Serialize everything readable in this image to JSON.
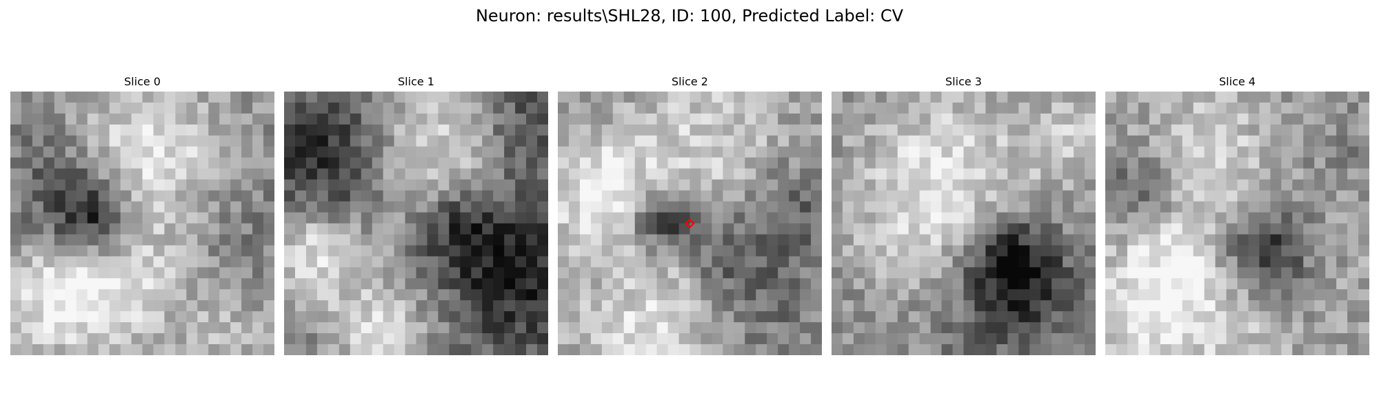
{
  "figure": {
    "title": "Neuron: results\\SHL28, ID: 100, Predicted Label: CV"
  },
  "panels": [
    {
      "title": "Slice 0",
      "has_marker": false
    },
    {
      "title": "Slice 1",
      "has_marker": false
    },
    {
      "title": "Slice 2",
      "has_marker": true
    },
    {
      "title": "Slice 3",
      "has_marker": false
    },
    {
      "title": "Slice 4",
      "has_marker": false
    }
  ],
  "colors": {
    "marker": "#ff0000"
  }
}
